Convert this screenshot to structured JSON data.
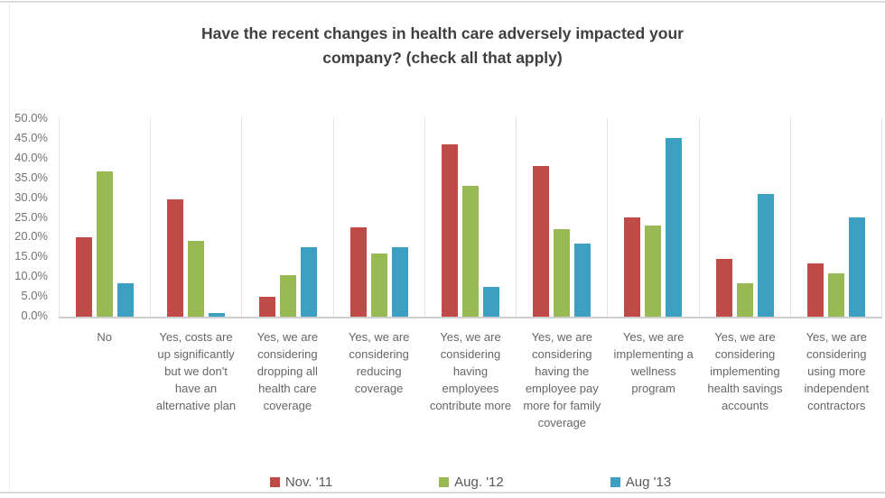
{
  "chart_data": {
    "type": "bar",
    "title": "Have the recent changes in health care adversely impacted your company? (check all that apply)",
    "categories": [
      "No",
      "Yes, costs are up significantly but we don't have an alternative plan",
      "Yes, we are considering dropping all health care coverage",
      "Yes, we are considering reducing coverage",
      "Yes, we are considering having employees contribute more",
      "Yes, we are considering having the employee pay more for family coverage",
      "Yes, we are implementing a wellness program",
      "Yes, we are considering implementing health savings accounts",
      "Yes, we are considering using more independent contractors"
    ],
    "series": [
      {
        "name": "Nov. '11",
        "color": "#be4b48",
        "values": [
          20,
          29.5,
          5,
          22.5,
          43.5,
          38,
          25,
          14.5,
          13.5
        ]
      },
      {
        "name": "Aug. '12",
        "color": "#98b954",
        "values": [
          36.5,
          19,
          10.5,
          16,
          33,
          22,
          23,
          8.5,
          11
        ]
      },
      {
        "name": "Aug '13",
        "color": "#3d9fc1",
        "values": [
          8.5,
          1,
          17.5,
          17.5,
          7.5,
          18.5,
          45,
          31,
          25
        ]
      }
    ],
    "ylabel": "",
    "xlabel": "",
    "ylim": [
      0,
      50
    ],
    "y_ticks": [
      "50.0%",
      "45.0%",
      "40.0%",
      "35.0%",
      "30.0%",
      "25.0%",
      "20.0%",
      "15.0%",
      "10.0%",
      "5.0%",
      "0.0%"
    ],
    "grid": "vertical-category-separators",
    "legend_position": "bottom"
  }
}
